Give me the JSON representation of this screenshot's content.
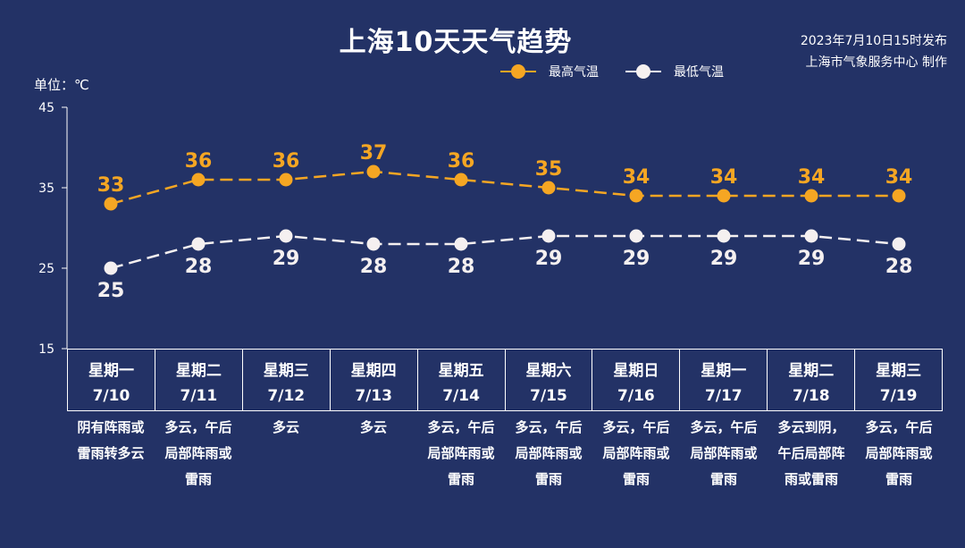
{
  "header": {
    "title": "上海10天天气趋势",
    "issue_time": "2023年7月10日15时发布",
    "issuer": "上海市气象服务中心 制作"
  },
  "unit_label": "单位：℃",
  "colors": {
    "background": "#233266",
    "high": "#F5A623",
    "low": "#F5F0F0"
  },
  "chart_data": {
    "type": "line",
    "ylim": [
      15,
      45
    ],
    "yticks": [
      15,
      25,
      35,
      45
    ],
    "categories": [
      "7/10",
      "7/11",
      "7/12",
      "7/13",
      "7/14",
      "7/15",
      "7/16",
      "7/17",
      "7/18",
      "7/19"
    ],
    "series": [
      {
        "name": "最高气温",
        "values": [
          33,
          36,
          36,
          37,
          36,
          35,
          34,
          34,
          34,
          34
        ]
      },
      {
        "name": "最低气温",
        "values": [
          25,
          28,
          29,
          28,
          28,
          29,
          29,
          29,
          29,
          28
        ]
      }
    ]
  },
  "days": [
    {
      "weekday": "星期一",
      "date": "7/10",
      "weather": "阴有阵雨或雷雨转多云"
    },
    {
      "weekday": "星期二",
      "date": "7/11",
      "weather": "多云，午后局部阵雨或雷雨"
    },
    {
      "weekday": "星期三",
      "date": "7/12",
      "weather": "多云"
    },
    {
      "weekday": "星期四",
      "date": "7/13",
      "weather": "多云"
    },
    {
      "weekday": "星期五",
      "date": "7/14",
      "weather": "多云，午后局部阵雨或雷雨"
    },
    {
      "weekday": "星期六",
      "date": "7/15",
      "weather": "多云，午后局部阵雨或雷雨"
    },
    {
      "weekday": "星期日",
      "date": "7/16",
      "weather": "多云，午后局部阵雨或雷雨"
    },
    {
      "weekday": "星期一",
      "date": "7/17",
      "weather": "多云，午后局部阵雨或雷雨"
    },
    {
      "weekday": "星期二",
      "date": "7/18",
      "weather": "多云到阴，午后局部阵雨或雷雨"
    },
    {
      "weekday": "星期三",
      "date": "7/19",
      "weather": "多云，午后局部阵雨或雷雨"
    }
  ]
}
